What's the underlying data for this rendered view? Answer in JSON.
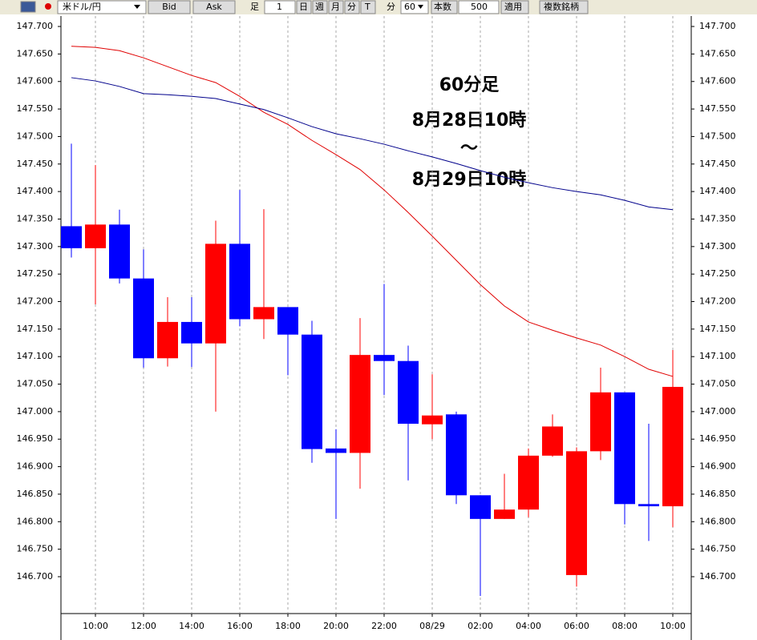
{
  "toolbar": {
    "symbol": "米ドル/円",
    "bid": "Bid",
    "ask": "Ask",
    "ashi": "足",
    "step": "1",
    "day": "日",
    "week": "週",
    "month": "月",
    "minute": "分",
    "tick": "T",
    "unit": "分",
    "period": "60",
    "count_label": "本数",
    "count": "500",
    "apply": "適用",
    "multi": "複数銘柄"
  },
  "chart_data": {
    "type": "candlestick",
    "categories": [
      null,
      "10:00",
      null,
      "12:00",
      null,
      "14:00",
      null,
      "16:00",
      null,
      "18:00",
      null,
      "20:00",
      null,
      "22:00",
      null,
      "08/29",
      null,
      "02:00",
      null,
      "04:00",
      null,
      "06:00",
      null,
      "08:00",
      null,
      "10:00"
    ],
    "open": [
      147.337,
      147.297,
      147.34,
      147.242,
      147.097,
      147.163,
      147.124,
      147.305,
      147.168,
      147.19,
      147.14,
      146.933,
      146.925,
      147.103,
      147.092,
      146.977,
      146.995,
      146.848,
      146.805,
      146.822,
      146.92,
      146.703,
      146.928,
      147.035,
      146.832,
      146.828
    ],
    "high": [
      147.487,
      147.448,
      147.367,
      147.295,
      147.208,
      147.208,
      147.347,
      147.403,
      147.368,
      147.19,
      147.165,
      146.968,
      147.17,
      147.232,
      147.12,
      147.068,
      147.0,
      146.848,
      146.887,
      146.933,
      146.995,
      146.935,
      147.08,
      147.035,
      146.978,
      147.112
    ],
    "low": [
      147.28,
      147.195,
      147.233,
      147.08,
      147.082,
      147.081,
      147.0,
      147.155,
      147.132,
      147.066,
      146.907,
      146.805,
      146.86,
      147.03,
      146.875,
      146.95,
      146.832,
      146.665,
      146.805,
      146.808,
      146.918,
      146.682,
      146.912,
      146.795,
      146.765,
      146.79
    ],
    "close": [
      147.297,
      147.34,
      147.242,
      147.097,
      147.163,
      147.124,
      147.305,
      147.168,
      147.19,
      147.14,
      146.932,
      146.925,
      147.103,
      147.092,
      146.978,
      146.993,
      146.848,
      146.805,
      146.822,
      146.92,
      146.973,
      146.928,
      147.035,
      146.832,
      146.828,
      147.045
    ],
    "up_color": "#ff0000",
    "down_color": "#0000ff",
    "series": [
      {
        "color": "#e00000",
        "values": [
          147.664,
          147.662,
          147.656,
          147.643,
          147.627,
          147.611,
          147.598,
          147.573,
          147.544,
          147.522,
          147.493,
          147.467,
          147.44,
          147.403,
          147.362,
          147.319,
          147.275,
          147.231,
          147.192,
          147.163,
          147.148,
          147.134,
          147.121,
          147.1,
          147.077,
          147.064
        ]
      },
      {
        "color": "#00008b",
        "values": [
          147.607,
          147.601,
          147.591,
          147.578,
          147.576,
          147.573,
          147.569,
          147.559,
          147.549,
          147.534,
          147.518,
          147.505,
          147.496,
          147.486,
          147.474,
          147.463,
          147.451,
          147.438,
          147.426,
          147.416,
          147.407,
          147.4,
          147.394,
          147.384,
          147.372,
          147.367
        ]
      }
    ],
    "ylim": [
      146.633,
      147.719
    ],
    "yticks": [
      {
        "value": 147.7,
        "label": "147.700"
      },
      {
        "value": 147.65,
        "label": "147.650"
      },
      {
        "value": 147.6,
        "label": "147.600"
      },
      {
        "value": 147.55,
        "label": "147.550"
      },
      {
        "value": 147.5,
        "label": "147.500"
      },
      {
        "value": 147.45,
        "label": "147.450"
      },
      {
        "value": 147.4,
        "label": "147.400"
      },
      {
        "value": 147.35,
        "label": "147.350"
      },
      {
        "value": 147.3,
        "label": "147.300"
      },
      {
        "value": 147.25,
        "label": "147.250"
      },
      {
        "value": 147.2,
        "label": "147.200"
      },
      {
        "value": 147.15,
        "label": "147.150"
      },
      {
        "value": 147.1,
        "label": "147.100"
      },
      {
        "value": 147.05,
        "label": "147.050"
      },
      {
        "value": 147,
        "label": "147.000"
      },
      {
        "value": 146.95,
        "label": "146.950"
      },
      {
        "value": 146.9,
        "label": "146.900"
      },
      {
        "value": 146.85,
        "label": "146.850"
      },
      {
        "value": 146.8,
        "label": "146.800"
      },
      {
        "value": 146.75,
        "label": "146.750"
      },
      {
        "value": 146.7,
        "label": "146.700"
      }
    ],
    "grid": "x",
    "annotation": [
      "60分足",
      "8月28日10時",
      "〜",
      "8月29日10時"
    ]
  }
}
